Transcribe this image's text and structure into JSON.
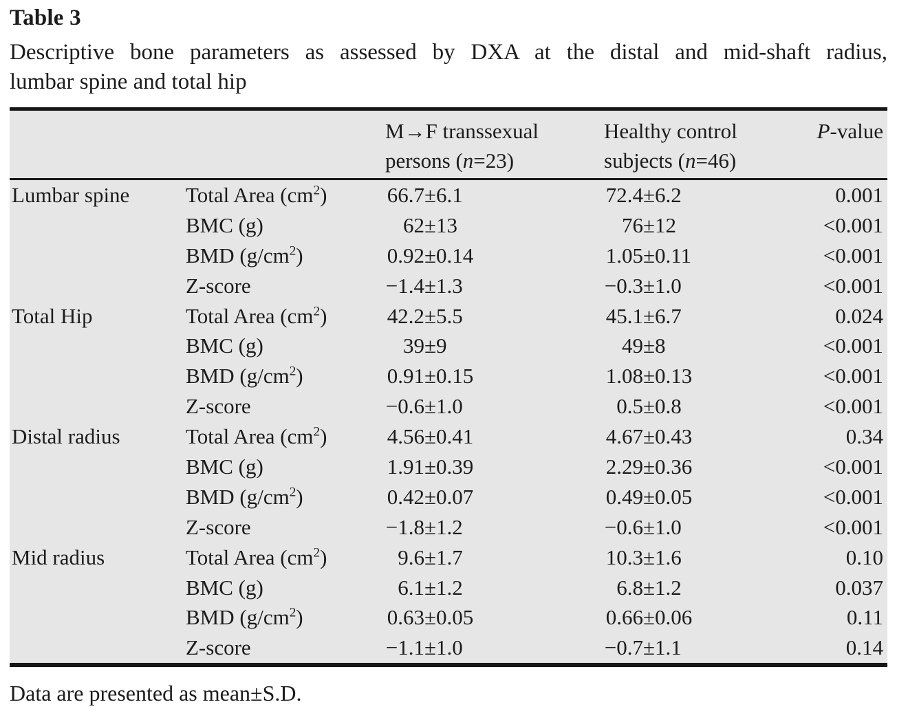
{
  "title": "Table 3",
  "caption_line1": "Descriptive bone parameters as assessed by DXA at the distal and mid-shaft radius,",
  "caption_line2": "lumbar spine and total hip",
  "header": {
    "group1_line1": "M→F transsexual",
    "group1_line2": "persons (*n*=23)",
    "group2_line1": "Healthy control",
    "group2_line2": "subjects (*n*=46)",
    "pvalue": "*P*-value"
  },
  "sections": [
    {
      "region": "Lumbar spine",
      "rows": [
        {
          "param": "Total Area (cm²)",
          "g1": "66.7±6.1",
          "g2": "72.4±6.2",
          "p": "0.001"
        },
        {
          "param": "BMC (g)",
          "g1": "62±13",
          "g2": "76±12",
          "p": "<0.001"
        },
        {
          "param": "BMD (g/cm²)",
          "g1": "0.92±0.14",
          "g2": "1.05±0.11",
          "p": "<0.001"
        },
        {
          "param": "Z-score",
          "g1": "−1.4±1.3",
          "g2": "−0.3±1.0",
          "p": "<0.001"
        }
      ]
    },
    {
      "region": "Total Hip",
      "rows": [
        {
          "param": "Total Area (cm²)",
          "g1": "42.2±5.5",
          "g2": "45.1±6.7",
          "p": "0.024"
        },
        {
          "param": "BMC (g)",
          "g1": "39±9",
          "g2": "49±8",
          "p": "<0.001"
        },
        {
          "param": "BMD (g/cm²)",
          "g1": "0.91±0.15",
          "g2": "1.08±0.13",
          "p": "<0.001"
        },
        {
          "param": "Z-score",
          "g1": "−0.6±1.0",
          "g2": "0.5±0.8",
          "p": "<0.001"
        }
      ]
    },
    {
      "region": "Distal radius",
      "rows": [
        {
          "param": "Total Area (cm²)",
          "g1": "4.56±0.41",
          "g2": "4.67±0.43",
          "p": "0.34"
        },
        {
          "param": "BMC (g)",
          "g1": "1.91±0.39",
          "g2": "2.29±0.36",
          "p": "<0.001"
        },
        {
          "param": "BMD (g/cm²)",
          "g1": "0.42±0.07",
          "g2": "0.49±0.05",
          "p": "<0.001"
        },
        {
          "param": "Z-score",
          "g1": "−1.8±1.2",
          "g2": "−0.6±1.0",
          "p": "<0.001"
        }
      ]
    },
    {
      "region": "Mid radius",
      "rows": [
        {
          "param": "Total Area (cm²)",
          "g1": "9.6±1.7",
          "g2": "10.3±1.6",
          "p": "0.10"
        },
        {
          "param": "BMC (g)",
          "g1": "6.1±1.2",
          "g2": "6.8±1.2",
          "p": "0.037"
        },
        {
          "param": "BMD (g/cm²)",
          "g1": "0.63±0.05",
          "g2": "0.66±0.06",
          "p": "0.11"
        },
        {
          "param": "Z-score",
          "g1": "−1.1±1.0",
          "g2": "−0.7±1.1",
          "p": "0.14"
        }
      ]
    }
  ],
  "footnote": "Data are presented as mean±S.D.",
  "colors": {
    "table_background": "#e6e6e6",
    "rule": "#161616",
    "text": "#1c1c1c",
    "page_background": "#ffffff"
  }
}
